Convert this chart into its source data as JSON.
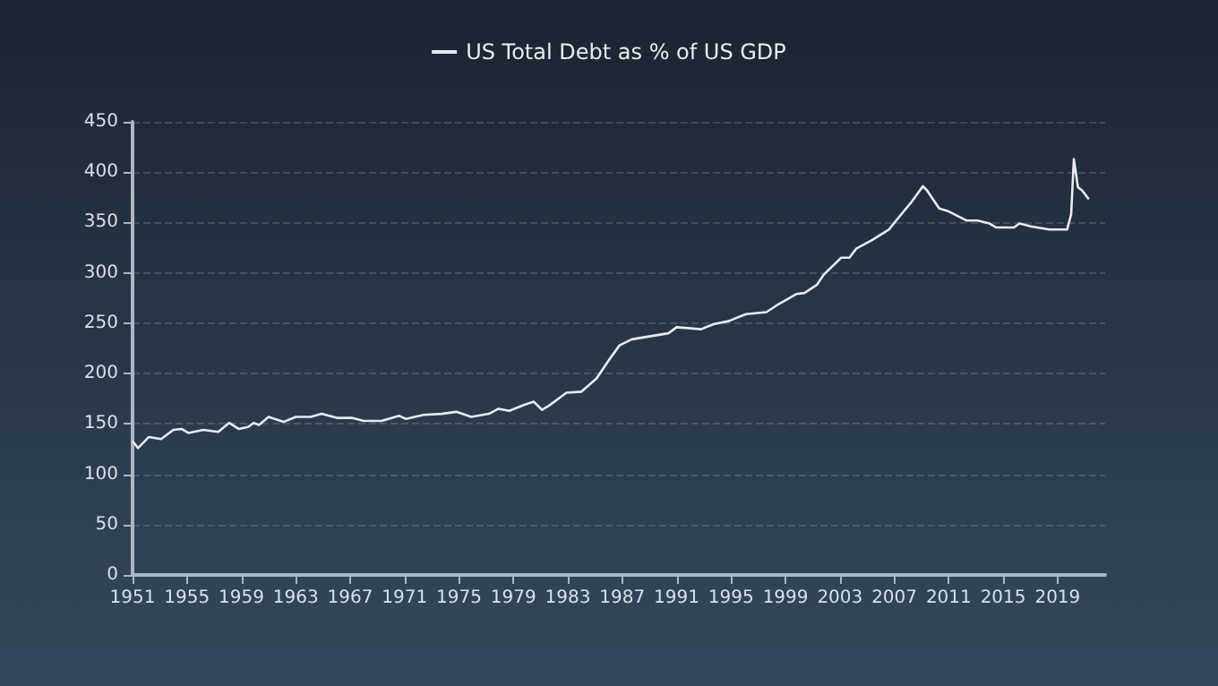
{
  "chart_data": {
    "type": "line",
    "legend": "top",
    "grid": "y",
    "line_style": "solid",
    "marker": "none",
    "xlim": [
      1951,
      2022.5
    ],
    "xticks": [
      1951,
      1955,
      1959,
      1963,
      1967,
      1971,
      1975,
      1979,
      1983,
      1987,
      1991,
      1995,
      1999,
      2003,
      2007,
      2011,
      2015,
      2019
    ],
    "ylim": [
      0,
      450
    ],
    "yticks": [
      0,
      50,
      100,
      150,
      200,
      250,
      300,
      350,
      400,
      450
    ],
    "series": [
      {
        "name": "US Total Debt as % of US GDP",
        "color": "#e6ecf2",
        "x": [
          1951,
          1951.4,
          1952.2,
          1953.1,
          1954,
          1954.6,
          1955.1,
          1956.2,
          1957.3,
          1958.1,
          1958.8,
          1959.5,
          1959.9,
          1960.3,
          1961,
          1962.1,
          1963,
          1964.1,
          1964.9,
          1966,
          1967.1,
          1968,
          1969.3,
          1970.6,
          1971.1,
          1972.4,
          1973.7,
          1974.8,
          1975.9,
          1977.2,
          1977.9,
          1978.7,
          1979.8,
          1980.5,
          1981.1,
          1981.6,
          1982.9,
          1984,
          1985.1,
          1986,
          1986.8,
          1987.7,
          1989.5,
          1990.4,
          1991,
          1992.8,
          1993.7,
          1994.8,
          1996.1,
          1997.6,
          1998.5,
          1999.8,
          2000.4,
          2001.3,
          2001.8,
          2003.1,
          2003.7,
          2004.2,
          2005.3,
          2006.6,
          2007.5,
          2008.3,
          2009.1,
          2009.4,
          2010.3,
          2011,
          2012.3,
          2013.1,
          2014,
          2014.5,
          2015.8,
          2016.2,
          2017.1,
          2018.4,
          2019.7,
          2020,
          2020.2,
          2020.5,
          2020.8,
          2021.3
        ],
        "values": [
          133,
          126,
          137,
          135,
          144,
          145,
          141,
          144,
          142,
          151,
          145,
          147,
          151,
          149,
          157,
          152,
          157,
          157,
          160,
          156,
          156,
          153,
          153,
          158,
          155,
          159,
          160,
          162,
          157,
          160,
          165,
          163,
          169,
          172,
          164,
          168,
          181,
          182,
          195,
          213,
          228,
          234,
          238,
          240,
          246,
          244,
          249,
          252,
          259,
          261,
          269,
          279,
          280,
          288,
          298,
          315,
          315,
          324,
          332,
          343,
          358,
          371,
          386,
          382,
          364,
          361,
          352,
          352,
          349,
          345,
          345,
          349,
          346,
          343,
          343,
          358,
          413,
          385,
          382,
          373
        ]
      }
    ]
  }
}
